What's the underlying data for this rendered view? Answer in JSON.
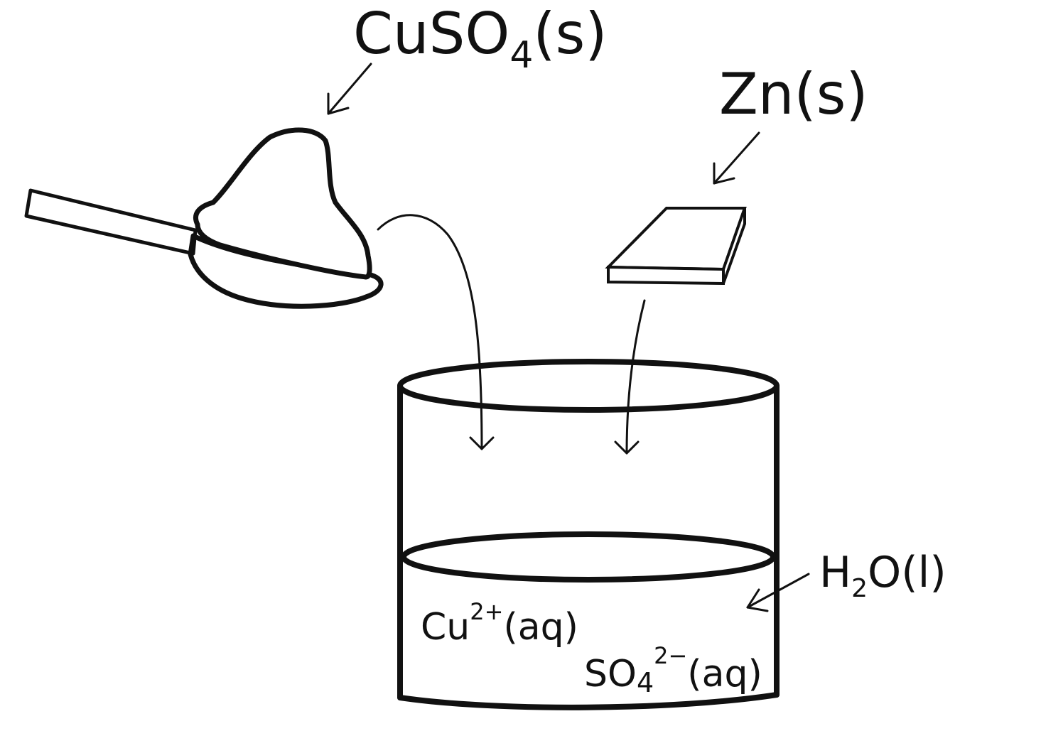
{
  "labels": {
    "cuso4": {
      "base": "CuSO",
      "sub": "4",
      "tail": "(s)"
    },
    "zn": {
      "text": "Zn(s)"
    },
    "water": {
      "pre": "H",
      "sub": "2",
      "tail": "O(l)"
    },
    "cu_ion": {
      "base": "Cu",
      "sup": "2+",
      "tail": "(aq)"
    },
    "so4_ion": {
      "base": "SO",
      "sub": "4",
      "sup": "2−",
      "tail": "(aq)"
    }
  },
  "colors": {
    "ink": "#111111",
    "background": "#ffffff"
  },
  "icons": {
    "spoon": "spoon-icon",
    "powder": "powder-pile-icon",
    "zinc": "zinc-strip-icon",
    "beaker": "beaker-icon"
  }
}
